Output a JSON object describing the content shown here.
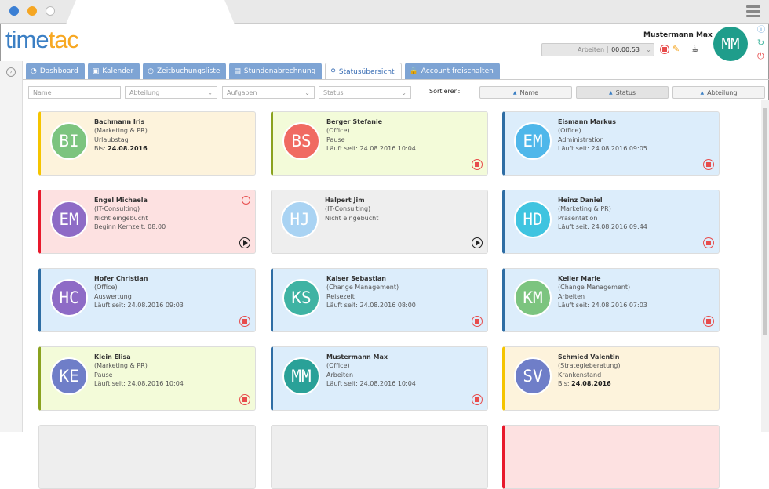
{
  "header": {
    "logo_time": "time",
    "logo_tac": "tac",
    "user_name": "Mustermann Max",
    "timer_task": "Arbeiten",
    "timer_value": "00:00:53",
    "avatar_initials": "MM"
  },
  "tabs": [
    {
      "label": "Dashboard",
      "icon": "dashboard-icon",
      "glyph": "◔"
    },
    {
      "label": "Kalender",
      "icon": "calendar-icon",
      "glyph": "▣"
    },
    {
      "label": "Zeitbuchungsliste",
      "icon": "clock-icon",
      "glyph": "◷"
    },
    {
      "label": "Stundenabrechnung",
      "icon": "clipboard-icon",
      "glyph": "▤"
    },
    {
      "label": "Statusübersicht",
      "icon": "user-status-icon",
      "glyph": "⚲",
      "active": true
    },
    {
      "label": "Account freischalten",
      "icon": "lock-icon",
      "glyph": "🔒"
    }
  ],
  "filters": {
    "name_placeholder": "Name",
    "abteilung": "Abteilung",
    "aufgaben": "Aufgaben",
    "status": "Status",
    "sort_label": "Sortieren:",
    "sort": [
      "Name",
      "Status",
      "Abteilung"
    ]
  },
  "colors": {
    "yellow": [
      "#fdf3dc",
      "#f5c400"
    ],
    "green": [
      "#f3fbd9",
      "#8aa21f"
    ],
    "blue": [
      "#dcedfb",
      "#2e6da4"
    ],
    "red": [
      "#fde1e1",
      "#e8192c"
    ],
    "grey": [
      "#eeeeee",
      "#dddddd"
    ]
  },
  "cards": [
    {
      "initials": "BI",
      "avatar": "#7cc47f",
      "theme": "yellow",
      "name": "Bachmann Iris",
      "dept": "(Marketing & PR)",
      "status": "Urlaubstag",
      "line4": "Bis: ",
      "line4b": "24.08.2016",
      "action": ""
    },
    {
      "initials": "BS",
      "avatar": "#f06a62",
      "theme": "green",
      "name": "Berger Stefanie",
      "dept": "(Office)",
      "status": "Pause",
      "line4": "Läuft seit: 24.08.2016 10:04",
      "action": "stop"
    },
    {
      "initials": "EM",
      "avatar": "#4fb7ea",
      "theme": "blue",
      "name": "Eismann Markus",
      "dept": "(Office)",
      "status": "Administration",
      "line4": "Läuft seit: 24.08.2016 09:05",
      "action": "stop"
    },
    {
      "initials": "EM",
      "avatar": "#8e6bc6",
      "theme": "red",
      "name": "Engel Michaela",
      "dept": "(IT-Consulting)",
      "status": "Nicht eingebucht",
      "line4": "Beginn Kernzeit: 08:00",
      "action": "play",
      "warn": "!"
    },
    {
      "initials": "HJ",
      "avatar": "#a9d3f3",
      "theme": "grey",
      "name": "Halpert Jim",
      "dept": "(IT-Consulting)",
      "status": "Nicht eingebucht",
      "line4": "",
      "action": "play"
    },
    {
      "initials": "HD",
      "avatar": "#3fc4e0",
      "theme": "blue",
      "name": "Heinz Daniel",
      "dept": "(Marketing & PR)",
      "status": "Präsentation",
      "line4": "Läuft seit: 24.08.2016 09:44",
      "action": "stop"
    },
    {
      "initials": "HC",
      "avatar": "#8e6bc6",
      "theme": "blue",
      "name": "Hofer Christian",
      "dept": "(Office)",
      "status": "Auswertung",
      "line4": "Läuft seit: 24.08.2016 09:03",
      "action": "stop"
    },
    {
      "initials": "KS",
      "avatar": "#3fb3a3",
      "theme": "blue",
      "name": "Kaiser Sebastian",
      "dept": "(Change Management)",
      "status": "Reisezeit",
      "line4": "Läuft seit: 24.08.2016 08:00",
      "action": "stop"
    },
    {
      "initials": "KM",
      "avatar": "#7cc47f",
      "theme": "blue",
      "name": "Keiler Marie",
      "dept": "(Change Management)",
      "status": "Arbeiten",
      "line4": "Läuft seit: 24.08.2016 07:03",
      "action": "stop"
    },
    {
      "initials": "KE",
      "avatar": "#6f7ec8",
      "theme": "green",
      "name": "Klein Elisa",
      "dept": "(Marketing & PR)",
      "status": "Pause",
      "line4": "Läuft seit: 24.08.2016 10:04",
      "action": "stop"
    },
    {
      "initials": "MM",
      "avatar": "#2aa198",
      "theme": "blue",
      "name": "Mustermann Max",
      "dept": "(Office)",
      "status": "Arbeiten",
      "line4": "Läuft seit: 24.08.2016 10:04",
      "action": "stop"
    },
    {
      "initials": "SV",
      "avatar": "#6f7ec8",
      "theme": "yellow",
      "name": "Schmied Valentin",
      "dept": "(Strategieberatung)",
      "status": "Krankenstand",
      "line4": "Bis: ",
      "line4b": "24.08.2016",
      "action": ""
    },
    {
      "theme": "grey"
    },
    {
      "theme": "grey"
    },
    {
      "theme": "red"
    }
  ]
}
